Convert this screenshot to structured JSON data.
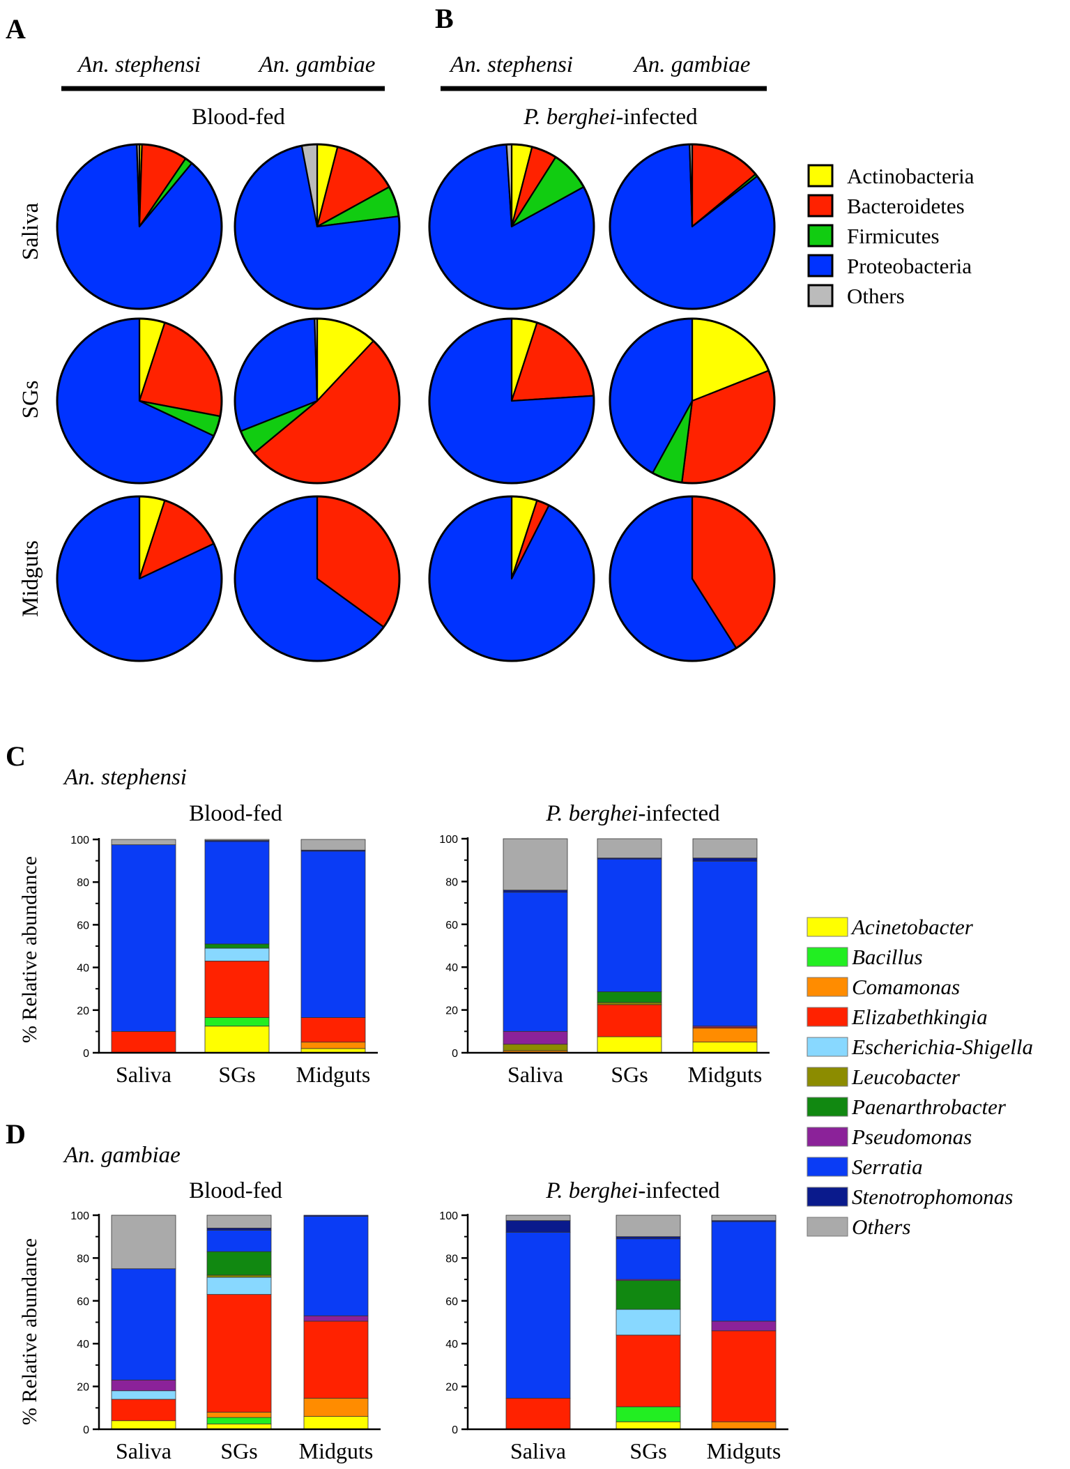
{
  "panels": {
    "A": {
      "letter": "A",
      "species_left": "An. stephensi",
      "species_right": "An. gambiae",
      "condition": "Blood-fed"
    },
    "B": {
      "letter": "B",
      "species_left": "An. stephensi",
      "species_right": "An. gambiae",
      "condition_italic": "P. berghei",
      "condition_suffix": "-infected"
    },
    "C": {
      "letter": "C",
      "species": "An. stephensi",
      "left_title": "Blood-fed",
      "right_title_italic": "P. berghei",
      "right_title_suffix": "-infected"
    },
    "D": {
      "letter": "D",
      "species": "An. gambiae",
      "left_title": "Blood-fed",
      "right_title_italic": "P. berghei",
      "right_title_suffix": "-infected"
    }
  },
  "pie_rows": [
    "Saliva",
    "SGs",
    "Midguts"
  ],
  "phylum_legend": [
    {
      "name": "Actinobacteria",
      "color": "#FFFF00"
    },
    {
      "name": "Bacteroidetes",
      "color": "#FF2200"
    },
    {
      "name": "Firmicutes",
      "color": "#11CC11"
    },
    {
      "name": "Proteobacteria",
      "color": "#0033FF"
    },
    {
      "name": "Others",
      "color": "#BBBBBB"
    }
  ],
  "genus_legend": [
    {
      "name": "Acinetobacter",
      "color": "#FFFF00"
    },
    {
      "name": "Bacillus",
      "color": "#22EE22"
    },
    {
      "name": "Comamonas",
      "color": "#FF8C00"
    },
    {
      "name": "Elizabethkingia",
      "color": "#FF2200"
    },
    {
      "name": "Escherichia-Shigella",
      "color": "#88D8FF"
    },
    {
      "name": "Leucobacter",
      "color": "#8C8C00"
    },
    {
      "name": "Paenarthrobacter",
      "color": "#118811"
    },
    {
      "name": "Pseudomonas",
      "color": "#8B2299"
    },
    {
      "name": "Serratia",
      "color": "#0A3CF5"
    },
    {
      "name": "Stenotrophomonas",
      "color": "#0A1A8C"
    },
    {
      "name": "Others",
      "color": "#AAAAAA"
    }
  ],
  "chart_data": [
    {
      "type": "pie",
      "title": "Panel A - Blood-fed",
      "slice_order": [
        "Actinobacteria",
        "Bacteroidetes",
        "Firmicutes",
        "Proteobacteria",
        "Others"
      ],
      "pies": [
        {
          "tissue": "Saliva",
          "species": "An. stephensi",
          "values": [
            0.5,
            9,
            1.5,
            88.5,
            0.5
          ]
        },
        {
          "tissue": "Saliva",
          "species": "An. gambiae",
          "values": [
            4,
            13,
            6,
            74,
            3
          ]
        },
        {
          "tissue": "SGs",
          "species": "An. stephensi",
          "values": [
            5,
            23,
            4,
            68,
            0
          ]
        },
        {
          "tissue": "SGs",
          "species": "An. gambiae",
          "values": [
            12,
            52,
            5,
            30.5,
            0.5
          ]
        },
        {
          "tissue": "Midguts",
          "species": "An. stephensi",
          "values": [
            5,
            13,
            0,
            82,
            0
          ]
        },
        {
          "tissue": "Midguts",
          "species": "An. gambiae",
          "values": [
            0,
            35,
            0,
            65,
            0
          ]
        }
      ]
    },
    {
      "type": "pie",
      "title": "Panel B - P. berghei-infected",
      "slice_order": [
        "Actinobacteria",
        "Bacteroidetes",
        "Firmicutes",
        "Proteobacteria",
        "Others"
      ],
      "pies": [
        {
          "tissue": "Saliva",
          "species": "An. stephensi",
          "values": [
            4,
            5,
            8,
            82,
            1
          ]
        },
        {
          "tissue": "Saliva",
          "species": "An. gambiae",
          "values": [
            0,
            14,
            0.5,
            85,
            0.5
          ]
        },
        {
          "tissue": "SGs",
          "species": "An. stephensi",
          "values": [
            5,
            19,
            0,
            76,
            0
          ]
        },
        {
          "tissue": "SGs",
          "species": "An. gambiae",
          "values": [
            19,
            33,
            6,
            42,
            0
          ]
        },
        {
          "tissue": "Midguts",
          "species": "An. stephensi",
          "values": [
            5,
            2.5,
            0,
            92.5,
            0
          ]
        },
        {
          "tissue": "Midguts",
          "species": "An. gambiae",
          "values": [
            0,
            41,
            0,
            59,
            0
          ]
        }
      ]
    },
    {
      "type": "bar",
      "stacked": true,
      "panel": "C",
      "title": "Blood-fed",
      "ylabel": "% Relative abundance",
      "ylim": [
        0,
        100
      ],
      "yticks": [
        "0",
        "20",
        "40",
        "60",
        "80",
        "100"
      ],
      "categories": [
        "Saliva",
        "SGs",
        "Midguts"
      ],
      "series": [
        {
          "name": "Acinetobacter",
          "values": [
            0,
            12.5,
            2
          ]
        },
        {
          "name": "Bacillus",
          "values": [
            0,
            4,
            0
          ]
        },
        {
          "name": "Comamonas",
          "values": [
            0,
            0,
            3
          ]
        },
        {
          "name": "Elizabethkingia",
          "values": [
            10,
            26.5,
            11.5
          ]
        },
        {
          "name": "Escherichia-Shigella",
          "values": [
            0,
            6,
            0
          ]
        },
        {
          "name": "Leucobacter",
          "values": [
            0,
            0,
            0
          ]
        },
        {
          "name": "Paenarthrobacter",
          "values": [
            0,
            2,
            0
          ]
        },
        {
          "name": "Pseudomonas",
          "values": [
            0,
            0,
            0
          ]
        },
        {
          "name": "Serratia",
          "values": [
            87.5,
            48,
            78
          ]
        },
        {
          "name": "Stenotrophomonas",
          "values": [
            0,
            0.5,
            0.5
          ]
        },
        {
          "name": "Others",
          "values": [
            2.5,
            0.5,
            5
          ]
        }
      ]
    },
    {
      "type": "bar",
      "stacked": true,
      "panel": "C",
      "title": "P. berghei-infected",
      "ylabel": "",
      "ylim": [
        0,
        100
      ],
      "yticks": [
        "0",
        "20",
        "40",
        "60",
        "80",
        "100"
      ],
      "categories": [
        "Saliva",
        "SGs",
        "Midguts"
      ],
      "series": [
        {
          "name": "Acinetobacter",
          "values": [
            0,
            7.5,
            5
          ]
        },
        {
          "name": "Bacillus",
          "values": [
            0,
            0,
            0
          ]
        },
        {
          "name": "Comamonas",
          "values": [
            1,
            0,
            6.5
          ]
        },
        {
          "name": "Elizabethkingia",
          "values": [
            0,
            15,
            0.5
          ]
        },
        {
          "name": "Escherichia-Shigella",
          "values": [
            0,
            0,
            0
          ]
        },
        {
          "name": "Leucobacter",
          "values": [
            3,
            1,
            0
          ]
        },
        {
          "name": "Paenarthrobacter",
          "values": [
            0,
            5,
            0
          ]
        },
        {
          "name": "Pseudomonas",
          "values": [
            6,
            0,
            0.5
          ]
        },
        {
          "name": "Serratia",
          "values": [
            65,
            62,
            77
          ]
        },
        {
          "name": "Stenotrophomonas",
          "values": [
            1,
            0.5,
            1.5
          ]
        },
        {
          "name": "Others",
          "values": [
            24,
            9,
            9
          ]
        }
      ]
    },
    {
      "type": "bar",
      "stacked": true,
      "panel": "D",
      "title": "Blood-fed",
      "ylabel": "% Relative abundance",
      "ylim": [
        0,
        100
      ],
      "yticks": [
        "0",
        "20",
        "40",
        "60",
        "80",
        "100"
      ],
      "categories": [
        "Saliva",
        "SGs",
        "Midguts"
      ],
      "series": [
        {
          "name": "Acinetobacter",
          "values": [
            4,
            2.5,
            6
          ]
        },
        {
          "name": "Bacillus",
          "values": [
            0,
            3,
            0
          ]
        },
        {
          "name": "Comamonas",
          "values": [
            0,
            2.5,
            8.5
          ]
        },
        {
          "name": "Elizabethkingia",
          "values": [
            10,
            55,
            36
          ]
        },
        {
          "name": "Escherichia-Shigella",
          "values": [
            4,
            8,
            0
          ]
        },
        {
          "name": "Leucobacter",
          "values": [
            0,
            1,
            0
          ]
        },
        {
          "name": "Paenarthrobacter",
          "values": [
            0,
            11,
            0
          ]
        },
        {
          "name": "Pseudomonas",
          "values": [
            5,
            0,
            2.5
          ]
        },
        {
          "name": "Serratia",
          "values": [
            52,
            10,
            46.5
          ]
        },
        {
          "name": "Stenotrophomonas",
          "values": [
            0,
            1,
            0.5
          ]
        },
        {
          "name": "Others",
          "values": [
            25,
            6,
            0
          ]
        }
      ]
    },
    {
      "type": "bar",
      "stacked": true,
      "panel": "D",
      "title": "P. berghei-infected",
      "ylabel": "",
      "ylim": [
        0,
        100
      ],
      "yticks": [
        "0",
        "20",
        "40",
        "60",
        "80",
        "100"
      ],
      "categories": [
        "Saliva",
        "SGs",
        "Midguts"
      ],
      "series": [
        {
          "name": "Acinetobacter",
          "values": [
            0,
            3.5,
            0
          ]
        },
        {
          "name": "Bacillus",
          "values": [
            0,
            7,
            0
          ]
        },
        {
          "name": "Comamonas",
          "values": [
            0,
            0,
            3.5
          ]
        },
        {
          "name": "Elizabethkingia",
          "values": [
            14.5,
            33.5,
            42.5
          ]
        },
        {
          "name": "Escherichia-Shigella",
          "values": [
            0,
            12,
            0
          ]
        },
        {
          "name": "Leucobacter",
          "values": [
            0,
            0,
            0
          ]
        },
        {
          "name": "Paenarthrobacter",
          "values": [
            0,
            13.5,
            0
          ]
        },
        {
          "name": "Pseudomonas",
          "values": [
            0,
            0.5,
            4.5
          ]
        },
        {
          "name": "Serratia",
          "values": [
            77.5,
            19,
            46.5
          ]
        },
        {
          "name": "Stenotrophomonas",
          "values": [
            5.5,
            1,
            0.5
          ]
        },
        {
          "name": "Others",
          "values": [
            2.5,
            10,
            2.5
          ]
        }
      ]
    }
  ]
}
